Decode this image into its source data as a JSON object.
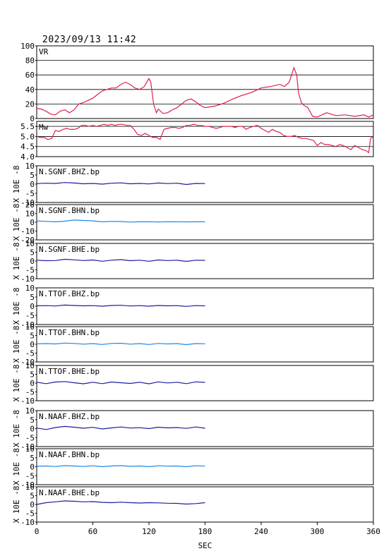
{
  "header": {
    "timestamp": "2023/09/13  11:42"
  },
  "chart_data": [
    {
      "type": "line",
      "id": "vr",
      "label": "VR",
      "color": "#e0204a",
      "xlim": [
        0,
        360
      ],
      "ylim": [
        0,
        100
      ],
      "yticks": [
        "100",
        "80",
        "60",
        "40",
        "20",
        "0"
      ],
      "grid": true,
      "x": [
        0,
        5,
        10,
        15,
        20,
        25,
        30,
        35,
        40,
        45,
        50,
        55,
        60,
        65,
        70,
        75,
        80,
        85,
        90,
        95,
        100,
        105,
        110,
        115,
        120,
        122,
        125,
        128,
        130,
        135,
        140,
        145,
        150,
        155,
        160,
        165,
        170,
        175,
        180,
        190,
        200,
        210,
        220,
        230,
        240,
        250,
        260,
        265,
        270,
        275,
        278,
        280,
        283,
        286,
        290,
        295,
        300,
        305,
        310,
        320,
        330,
        340,
        350,
        355,
        360
      ],
      "values": [
        14,
        13,
        10,
        6,
        5,
        10,
        12,
        8,
        12,
        20,
        22,
        25,
        28,
        33,
        38,
        40,
        42,
        42,
        47,
        50,
        47,
        42,
        40,
        44,
        55,
        50,
        20,
        8,
        13,
        7,
        8,
        12,
        15,
        20,
        25,
        27,
        23,
        18,
        15,
        17,
        21,
        27,
        32,
        36,
        42,
        44,
        47,
        44,
        50,
        70,
        60,
        35,
        22,
        18,
        15,
        3,
        2,
        5,
        8,
        4,
        5,
        3,
        5,
        2,
        5
      ]
    },
    {
      "type": "line",
      "id": "mw",
      "label": "Mw",
      "color": "#e0204a",
      "xlim": [
        0,
        360
      ],
      "ylim": [
        4.0,
        5.75
      ],
      "yticks": [
        "5.5",
        "5.0",
        "4.5",
        "4.0"
      ],
      "yticks_values": [
        5.5,
        5.0,
        4.5,
        4.0
      ],
      "grid": true,
      "x": [
        0,
        4,
        8,
        12,
        16,
        20,
        24,
        28,
        32,
        36,
        40,
        44,
        48,
        52,
        56,
        60,
        64,
        68,
        72,
        76,
        80,
        84,
        88,
        92,
        96,
        100,
        104,
        108,
        112,
        116,
        120,
        124,
        128,
        132,
        136,
        140,
        144,
        148,
        152,
        156,
        160,
        164,
        168,
        172,
        176,
        180,
        184,
        188,
        192,
        196,
        200,
        204,
        208,
        212,
        216,
        220,
        224,
        228,
        232,
        236,
        240,
        244,
        248,
        252,
        256,
        260,
        264,
        268,
        272,
        276,
        280,
        284,
        288,
        292,
        296,
        300,
        304,
        308,
        312,
        316,
        320,
        324,
        328,
        332,
        336,
        340,
        344,
        348,
        352,
        355,
        357,
        360
      ],
      "values": [
        5.0,
        4.95,
        4.95,
        4.85,
        4.9,
        5.3,
        5.25,
        5.35,
        5.4,
        5.35,
        5.35,
        5.4,
        5.55,
        5.55,
        5.5,
        5.55,
        5.5,
        5.55,
        5.6,
        5.55,
        5.6,
        5.55,
        5.6,
        5.6,
        5.55,
        5.55,
        5.35,
        5.1,
        5.05,
        5.15,
        5.05,
        4.95,
        4.95,
        4.85,
        5.35,
        5.4,
        5.45,
        5.45,
        5.4,
        5.45,
        5.55,
        5.55,
        5.6,
        5.55,
        5.55,
        5.5,
        5.5,
        5.45,
        5.4,
        5.45,
        5.5,
        5.5,
        5.5,
        5.45,
        5.5,
        5.5,
        5.35,
        5.45,
        5.5,
        5.55,
        5.4,
        5.3,
        5.2,
        5.35,
        5.25,
        5.2,
        5.05,
        5.0,
        5.0,
        5.05,
        4.95,
        4.9,
        4.9,
        4.85,
        4.8,
        4.55,
        4.7,
        4.6,
        4.6,
        4.55,
        4.5,
        4.6,
        4.55,
        4.45,
        4.35,
        4.55,
        4.45,
        4.35,
        4.3,
        4.2,
        4.9,
        5.0
      ]
    },
    {
      "type": "line",
      "id": "sgnf-bhz",
      "label": "N.SGNF.BHZ.bp",
      "color": "#1c1c9e",
      "xlim": [
        0,
        360
      ],
      "ylim": [
        -10,
        10
      ],
      "yticks": [
        "10",
        "5",
        "0",
        "-5",
        "-10"
      ],
      "yticks_values": [
        10,
        5,
        0,
        -5,
        -10
      ],
      "ylabel": "X 10E -8",
      "x": [
        0,
        10,
        20,
        30,
        40,
        50,
        60,
        70,
        80,
        90,
        100,
        110,
        120,
        130,
        140,
        150,
        160,
        170,
        180
      ],
      "values": [
        0.3,
        0.5,
        0.4,
        0.9,
        0.6,
        0.2,
        0.4,
        0.0,
        0.5,
        0.7,
        0.2,
        0.4,
        0.1,
        0.6,
        0.3,
        0.5,
        -0.2,
        0.4,
        0.3
      ]
    },
    {
      "type": "line",
      "id": "sgnf-bhn",
      "label": "N.SGNF.BHN.bp",
      "color": "#1e88e5",
      "xlim": [
        0,
        360
      ],
      "ylim": [
        -20,
        20
      ],
      "yticks": [
        "20",
        "10",
        "0",
        "-10",
        "-20"
      ],
      "yticks_values": [
        20,
        10,
        0,
        -10,
        -20
      ],
      "ylabel": "X 10E -8",
      "x": [
        0,
        10,
        20,
        30,
        40,
        50,
        60,
        70,
        80,
        90,
        100,
        110,
        120,
        130,
        140,
        150,
        160,
        170,
        180
      ],
      "values": [
        1.5,
        1.0,
        0.5,
        1.2,
        2.5,
        2.0,
        1.5,
        0.5,
        1.0,
        0.8,
        0.2,
        0.5,
        0.6,
        0.3,
        0.6,
        0.5,
        0.4,
        0.6,
        0.5
      ]
    },
    {
      "type": "line",
      "id": "sgnf-bhe",
      "label": "N.SGNF.BHE.bp",
      "color": "#1c1c9e",
      "xlim": [
        0,
        360
      ],
      "ylim": [
        -10,
        10
      ],
      "yticks": [
        "10",
        "5",
        "0",
        "-5",
        "-10"
      ],
      "yticks_values": [
        10,
        5,
        0,
        -5,
        -10
      ],
      "ylabel": "X 10E -8",
      "x": [
        0,
        10,
        20,
        30,
        40,
        50,
        60,
        70,
        80,
        90,
        100,
        110,
        120,
        130,
        140,
        150,
        160,
        170,
        180
      ],
      "values": [
        0.5,
        0.2,
        0.3,
        1.0,
        0.7,
        0.3,
        0.6,
        -0.1,
        0.5,
        0.8,
        0.2,
        0.5,
        -0.1,
        0.6,
        0.3,
        0.5,
        -0.2,
        0.5,
        0.4
      ]
    },
    {
      "type": "line",
      "id": "ttof-bhz",
      "label": "N.TTOF.BHZ.bp",
      "color": "#1c1c9e",
      "xlim": [
        0,
        360
      ],
      "ylim": [
        -10,
        10
      ],
      "yticks": [
        "10",
        "5",
        "0",
        "-5",
        "-10"
      ],
      "yticks_values": [
        10,
        5,
        0,
        -5,
        -10
      ],
      "ylabel": "X 10E -8",
      "x": [
        0,
        10,
        20,
        30,
        40,
        50,
        60,
        70,
        80,
        90,
        100,
        110,
        120,
        130,
        140,
        150,
        160,
        170,
        180
      ],
      "values": [
        0.2,
        0.3,
        0.1,
        0.6,
        0.4,
        0.2,
        0.3,
        0.0,
        0.4,
        0.5,
        0.1,
        0.3,
        0.0,
        0.4,
        0.2,
        0.3,
        -0.1,
        0.3,
        0.2
      ]
    },
    {
      "type": "line",
      "id": "ttof-bhn",
      "label": "N.TTOF.BHN.bp",
      "color": "#1e88e5",
      "xlim": [
        0,
        360
      ],
      "ylim": [
        -10,
        10
      ],
      "yticks": [
        "10",
        "5",
        "0",
        "-5",
        "-10"
      ],
      "yticks_values": [
        10,
        5,
        0,
        -5,
        -10
      ],
      "ylabel": "X 10E -8",
      "x": [
        0,
        10,
        20,
        30,
        40,
        50,
        60,
        70,
        80,
        90,
        100,
        110,
        120,
        130,
        140,
        150,
        160,
        170,
        180
      ],
      "values": [
        0.3,
        0.4,
        0.2,
        0.7,
        0.5,
        0.1,
        0.4,
        -0.1,
        0.5,
        0.6,
        0.1,
        0.4,
        -0.1,
        0.5,
        0.2,
        0.4,
        -0.2,
        0.4,
        0.3
      ]
    },
    {
      "type": "line",
      "id": "ttof-bhe",
      "label": "N.TTOF.BHE.bp",
      "color": "#1c1c9e",
      "xlim": [
        0,
        360
      ],
      "ylim": [
        -10,
        10
      ],
      "yticks": [
        "10",
        "5",
        "0",
        "-5",
        "-10"
      ],
      "yticks_values": [
        10,
        5,
        0,
        -5,
        -10
      ],
      "ylabel": "X 10E -8",
      "x": [
        0,
        10,
        20,
        30,
        40,
        50,
        60,
        70,
        80,
        90,
        100,
        110,
        120,
        130,
        140,
        150,
        160,
        170,
        180
      ],
      "values": [
        0.5,
        -0.3,
        0.6,
        0.9,
        0.2,
        -0.4,
        0.5,
        -0.3,
        0.6,
        0.2,
        -0.2,
        0.5,
        -0.4,
        0.7,
        0.1,
        0.5,
        -0.3,
        0.7,
        0.4
      ]
    },
    {
      "type": "line",
      "id": "naaf-bhz",
      "label": "N.NAAF.BHZ.bp",
      "color": "#1c1c9e",
      "xlim": [
        0,
        360
      ],
      "ylim": [
        -10,
        10
      ],
      "yticks": [
        "10",
        "5",
        "0",
        "-5",
        "-10"
      ],
      "yticks_values": [
        10,
        5,
        0,
        -5,
        -10
      ],
      "ylabel": "X 10E -8",
      "x": [
        0,
        10,
        20,
        30,
        40,
        50,
        60,
        70,
        80,
        90,
        100,
        110,
        120,
        130,
        140,
        150,
        160,
        170,
        180
      ],
      "values": [
        0.3,
        -0.5,
        0.6,
        1.2,
        0.8,
        0.2,
        0.7,
        -0.2,
        0.4,
        0.9,
        0.3,
        0.5,
        0.0,
        0.8,
        0.4,
        0.6,
        0.1,
        0.9,
        0.2
      ]
    },
    {
      "type": "line",
      "id": "naaf-bhn",
      "label": "N.NAAF.BHN.bp",
      "color": "#1e88e5",
      "xlim": [
        0,
        360
      ],
      "ylim": [
        -10,
        10
      ],
      "yticks": [
        "10",
        "5",
        "0",
        "-5",
        "-10"
      ],
      "yticks_values": [
        10,
        5,
        0,
        -5,
        -10
      ],
      "ylabel": "X 10E -8",
      "x": [
        0,
        10,
        20,
        30,
        40,
        50,
        60,
        70,
        80,
        90,
        100,
        110,
        120,
        130,
        140,
        150,
        160,
        170,
        180
      ],
      "values": [
        0.2,
        0.4,
        0.1,
        0.6,
        0.4,
        0.1,
        0.5,
        0.0,
        0.4,
        0.6,
        0.2,
        0.4,
        0.0,
        0.5,
        0.3,
        0.4,
        0.0,
        0.5,
        0.3
      ]
    },
    {
      "type": "line",
      "id": "naaf-bhe",
      "label": "N.NAAF.BHE.bp",
      "color": "#1c1c9e",
      "xlim": [
        0,
        360
      ],
      "ylim": [
        -10,
        10
      ],
      "yticks": [
        "10",
        "5",
        "0",
        "-5",
        "-10"
      ],
      "yticks_values": [
        10,
        5,
        0,
        -5,
        -10
      ],
      "ylabel": "X 10E -8",
      "x": [
        0,
        10,
        20,
        30,
        40,
        50,
        60,
        70,
        80,
        90,
        100,
        110,
        120,
        130,
        140,
        150,
        160,
        170,
        180
      ],
      "values": [
        0.0,
        1.0,
        1.5,
        2.0,
        1.8,
        1.5,
        1.6,
        1.2,
        1.0,
        1.3,
        1.0,
        0.8,
        1.0,
        0.9,
        0.7,
        0.6,
        0.2,
        0.5,
        1.0
      ]
    }
  ],
  "xaxis": {
    "ticks": [
      0,
      60,
      120,
      180,
      240,
      300,
      360
    ],
    "tick_labels": [
      "0",
      "60",
      "120",
      "180",
      "240",
      "300",
      "360"
    ],
    "label": "SEC"
  }
}
